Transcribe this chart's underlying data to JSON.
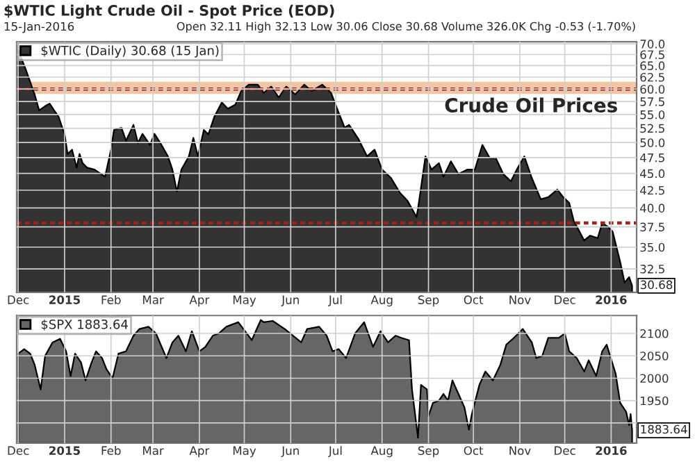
{
  "chart_data": [
    {
      "type": "area",
      "title": "$WTIC Light Crude Oil - Spot Price (EOD)",
      "subtitle": "15-Jan-2016",
      "annotations": [
        "Open 32.11 High 32.13 Low 30.06 Close 30.68 Volume 326.0K Chg -0.53 (-1.70%)",
        "Crude Oil Prices",
        {
          "text": "30.68",
          "x": "2016-01-15",
          "y": 30.68
        }
      ],
      "log": true,
      "legend": "top left",
      "grid": true,
      "x": [
        "2014-12-01",
        "2014-12-06",
        "2014-12-12",
        "2014-12-15",
        "2014-12-19",
        "2014-12-22",
        "2014-12-25",
        "2014-12-28",
        "2015-01-01",
        "2015-01-03",
        "2015-01-06",
        "2015-01-09",
        "2015-01-11",
        "2015-01-13",
        "2015-01-16",
        "2015-01-21",
        "2015-01-28",
        "2015-02-01",
        "2015-02-03",
        "2015-02-08",
        "2015-02-11",
        "2015-02-16",
        "2015-02-19",
        "2015-02-22",
        "2015-02-27",
        "2015-03-02",
        "2015-03-06",
        "2015-03-11",
        "2015-03-14",
        "2015-03-17",
        "2015-03-20",
        "2015-03-25",
        "2015-03-28",
        "2015-03-31",
        "2015-04-04",
        "2015-04-07",
        "2015-04-11",
        "2015-04-16",
        "2015-04-20",
        "2015-04-25",
        "2015-04-29",
        "2015-05-04",
        "2015-05-10",
        "2015-05-14",
        "2015-05-19",
        "2015-05-24",
        "2015-05-29",
        "2015-06-04",
        "2015-06-10",
        "2015-06-15",
        "2015-06-22",
        "2015-06-28",
        "2015-07-02",
        "2015-07-07",
        "2015-07-10",
        "2015-07-16",
        "2015-07-22",
        "2015-07-27",
        "2015-08-01",
        "2015-08-07",
        "2015-08-13",
        "2015-08-18",
        "2015-08-24",
        "2015-08-25",
        "2015-08-30",
        "2015-09-03",
        "2015-09-08",
        "2015-09-11",
        "2015-09-16",
        "2015-09-21",
        "2015-09-27",
        "2015-10-02",
        "2015-10-07",
        "2015-10-12",
        "2015-10-16",
        "2015-10-21",
        "2015-10-26",
        "2015-10-30",
        "2015-11-04",
        "2015-11-09",
        "2015-11-15",
        "2015-11-20",
        "2015-11-26",
        "2015-11-30",
        "2015-12-04",
        "2015-12-07",
        "2015-12-14",
        "2015-12-18",
        "2015-12-23",
        "2015-12-26",
        "2015-12-30",
        "2016-01-02",
        "2016-01-07",
        "2016-01-10",
        "2016-01-13",
        "2016-01-15"
      ],
      "series": [
        {
          "name": "$WTIC (Daily) 30.68 (15 Jan)",
          "color": "#333333",
          "values": [
            68.5,
            64.2,
            58.9,
            55.8,
            56.6,
            57.1,
            55.8,
            54.6,
            51.4,
            48.1,
            48.8,
            45.9,
            48.1,
            46.6,
            45.9,
            45.6,
            44.5,
            48.8,
            52.2,
            52.6,
            50.3,
            53.1,
            49.9,
            51.5,
            49.6,
            51.5,
            49.9,
            47.7,
            45.6,
            42.3,
            45.6,
            47.7,
            50.8,
            47.7,
            52.2,
            51.4,
            54.6,
            57.3,
            56.1,
            56.9,
            59.6,
            60.9,
            60.9,
            59.2,
            60.5,
            58.3,
            60.5,
            58.9,
            60.9,
            59.6,
            60.9,
            59.2,
            56.1,
            52.6,
            53.1,
            50.7,
            47.7,
            48.8,
            45.6,
            44.3,
            42.1,
            41.0,
            38.8,
            39.9,
            47.7,
            45.6,
            46.6,
            44.5,
            46.9,
            44.9,
            45.6,
            45.6,
            49.6,
            47.4,
            47.4,
            44.9,
            43.8,
            45.6,
            47.7,
            44.3,
            41.2,
            41.5,
            42.6,
            41.5,
            40.7,
            38.3,
            35.8,
            36.4,
            36.1,
            38.0,
            37.5,
            36.9,
            33.3,
            31.0,
            31.6,
            30.68
          ]
        }
      ],
      "bands": [
        {
          "axis": "y",
          "from": 59.0,
          "to": 61.5,
          "color": "#f2c6a4"
        }
      ],
      "ref_lines": [
        {
          "axis": "y",
          "value": 60,
          "color": "#a0201a",
          "line_style": "dotted"
        },
        {
          "axis": "y",
          "value": 38,
          "color": "#a0201a",
          "line_style": "dotted"
        }
      ],
      "xlim": [
        "2014-11-30",
        "2016-01-18"
      ],
      "ylim": [
        30.0,
        70.5
      ],
      "xticks": [
        {
          "value": "2014-12-01",
          "label": "Dec"
        },
        {
          "value": "2015-01-01",
          "label": "2015"
        },
        {
          "value": "2015-02-01",
          "label": "Feb"
        },
        {
          "value": "2015-03-01",
          "label": "Mar"
        },
        {
          "value": "2015-04-01",
          "label": "Apr"
        },
        {
          "value": "2015-05-01",
          "label": "May"
        },
        {
          "value": "2015-06-01",
          "label": "Jun"
        },
        {
          "value": "2015-07-01",
          "label": "Jul"
        },
        {
          "value": "2015-08-01",
          "label": "Aug"
        },
        {
          "value": "2015-09-01",
          "label": "Sep"
        },
        {
          "value": "2015-10-01",
          "label": "Oct"
        },
        {
          "value": "2015-11-01",
          "label": "Nov"
        },
        {
          "value": "2015-12-01",
          "label": "Dec"
        },
        {
          "value": "2016-01-01",
          "label": "2016"
        }
      ],
      "yticks": [
        {
          "value": 32.5,
          "label": "32.5"
        },
        {
          "value": 35,
          "label": "35.0"
        },
        {
          "value": 37.5,
          "label": "37.5"
        },
        {
          "value": 40,
          "label": "40.0"
        },
        {
          "value": 42.5,
          "label": "42.5"
        },
        {
          "value": 45,
          "label": "45.0"
        },
        {
          "value": 47.5,
          "label": "47.5"
        },
        {
          "value": 50,
          "label": "50.0"
        },
        {
          "value": 52.5,
          "label": "52.5"
        },
        {
          "value": 55,
          "label": "55.0"
        },
        {
          "value": 57.5,
          "label": "57.5"
        },
        {
          "value": 60,
          "label": "60.0"
        },
        {
          "value": 62.5,
          "label": "62.5"
        },
        {
          "value": 65,
          "label": "65.0"
        },
        {
          "value": 67.5,
          "label": "67.5"
        },
        {
          "value": 70,
          "label": "70.0"
        }
      ]
    },
    {
      "type": "area",
      "legend": "top left",
      "grid": true,
      "annotations": [
        {
          "text": "1883.64",
          "x": "2016-01-15",
          "y": 1883.64
        }
      ],
      "x": [
        "2014-12-01",
        "2014-12-05",
        "2014-12-09",
        "2014-12-12",
        "2014-12-16",
        "2014-12-19",
        "2014-12-24",
        "2014-12-29",
        "2015-01-02",
        "2015-01-05",
        "2015-01-08",
        "2015-01-12",
        "2015-01-15",
        "2015-01-19",
        "2015-01-22",
        "2015-01-26",
        "2015-01-29",
        "2015-02-02",
        "2015-02-06",
        "2015-02-11",
        "2015-02-16",
        "2015-02-20",
        "2015-02-26",
        "2015-03-03",
        "2015-03-10",
        "2015-03-14",
        "2015-03-18",
        "2015-03-23",
        "2015-03-27",
        "2015-04-01",
        "2015-04-05",
        "2015-04-10",
        "2015-04-14",
        "2015-04-19",
        "2015-04-27",
        "2015-05-06",
        "2015-05-12",
        "2015-05-14",
        "2015-05-20",
        "2015-05-28",
        "2015-06-08",
        "2015-06-12",
        "2015-06-20",
        "2015-06-25",
        "2015-06-29",
        "2015-07-03",
        "2015-07-08",
        "2015-07-14",
        "2015-07-20",
        "2015-07-26",
        "2015-07-31",
        "2015-08-05",
        "2015-08-10",
        "2015-08-14",
        "2015-08-19",
        "2015-08-21",
        "2015-08-25",
        "2015-08-27",
        "2015-08-31",
        "2015-09-01",
        "2015-09-04",
        "2015-09-08",
        "2015-09-11",
        "2015-09-14",
        "2015-09-17",
        "2015-09-21",
        "2015-09-25",
        "2015-09-28",
        "2015-09-30",
        "2015-10-05",
        "2015-10-09",
        "2015-10-14",
        "2015-10-19",
        "2015-10-23",
        "2015-10-28",
        "2015-11-03",
        "2015-11-05",
        "2015-11-09",
        "2015-11-12",
        "2015-11-16",
        "2015-11-20",
        "2015-11-27",
        "2015-12-01",
        "2015-12-04",
        "2015-12-09",
        "2015-12-14",
        "2015-12-17",
        "2015-12-22",
        "2015-12-26",
        "2015-12-29",
        "2016-01-04",
        "2016-01-07",
        "2016-01-11",
        "2016-01-13",
        "2016-01-14",
        "2016-01-15"
      ],
      "series": [
        {
          "name": "$SPX 1883.64",
          "color": "#666666",
          "values": [
            2055,
            2065,
            2055,
            2030,
            1975,
            2050,
            2080,
            2088,
            2060,
            2005,
            2055,
            2035,
            1995,
            2035,
            2060,
            2045,
            2020,
            2000,
            2055,
            2060,
            2095,
            2110,
            2115,
            2100,
            2045,
            2080,
            2095,
            2060,
            2105,
            2060,
            2070,
            2095,
            2100,
            2115,
            2125,
            2085,
            2130,
            2125,
            2128,
            2110,
            2080,
            2110,
            2115,
            2095,
            2060,
            2065,
            2045,
            2100,
            2125,
            2070,
            2105,
            2080,
            2095,
            2090,
            2085,
            1975,
            1867,
            1985,
            1975,
            1915,
            1945,
            1950,
            1965,
            1950,
            1995,
            1965,
            1935,
            1885,
            1920,
            1985,
            2015,
            1995,
            2030,
            2075,
            2090,
            2110,
            2100,
            2080,
            2045,
            2050,
            2090,
            2090,
            2100,
            2060,
            2045,
            2015,
            2040,
            2005,
            2060,
            2075,
            2010,
            1945,
            1925,
            1895,
            1920,
            1883.64
          ]
        }
      ],
      "xlim": [
        "2014-11-30",
        "2016-01-18"
      ],
      "ylim": [
        1855,
        2140
      ],
      "xticks": [
        {
          "value": "2014-12-01",
          "label": "Dec"
        },
        {
          "value": "2015-01-01",
          "label": "2015"
        },
        {
          "value": "2015-02-01",
          "label": "Feb"
        },
        {
          "value": "2015-03-01",
          "label": "Mar"
        },
        {
          "value": "2015-04-01",
          "label": "Apr"
        },
        {
          "value": "2015-05-01",
          "label": "May"
        },
        {
          "value": "2015-06-01",
          "label": "Jun"
        },
        {
          "value": "2015-07-01",
          "label": "Jul"
        },
        {
          "value": "2015-08-01",
          "label": "Aug"
        },
        {
          "value": "2015-09-01",
          "label": "Sep"
        },
        {
          "value": "2015-10-01",
          "label": "Oct"
        },
        {
          "value": "2015-11-01",
          "label": "Nov"
        },
        {
          "value": "2015-12-01",
          "label": "Dec"
        },
        {
          "value": "2016-01-01",
          "label": "2016"
        }
      ],
      "yticks": [
        {
          "value": 1900,
          "label": null
        },
        1950,
        2000,
        2050,
        2100
      ]
    }
  ]
}
